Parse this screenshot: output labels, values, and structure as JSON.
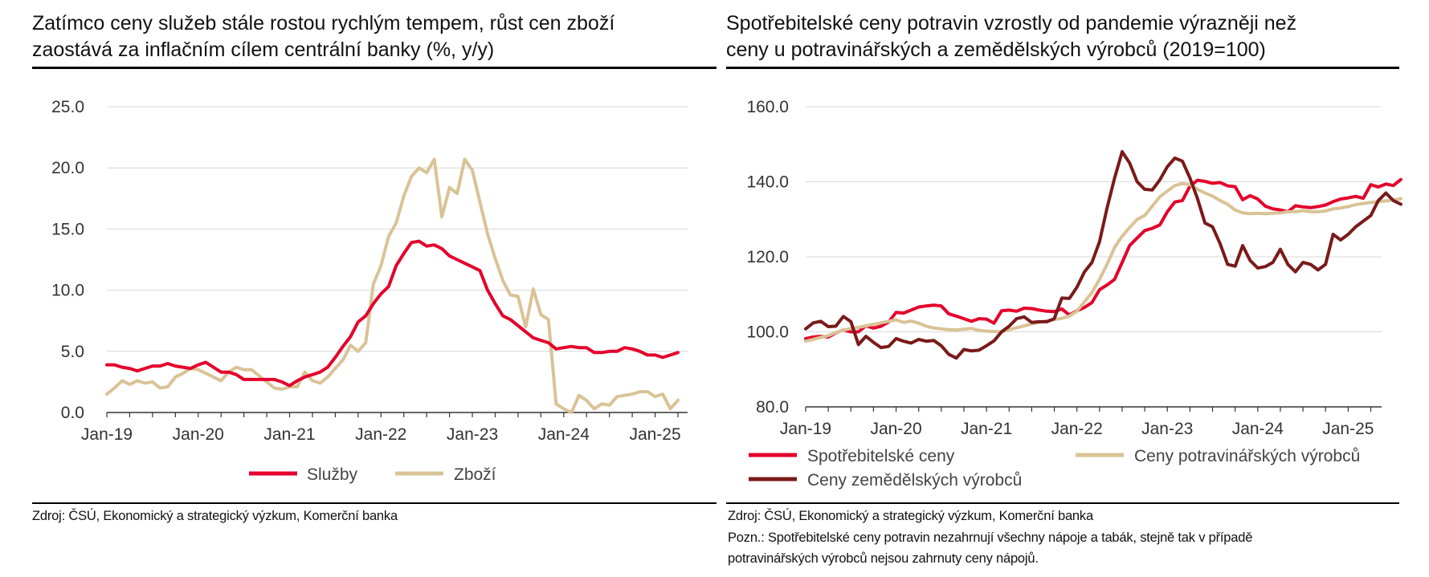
{
  "colors": {
    "red": "#e4002b",
    "beige": "#d9c396",
    "darkred": "#7a1a1a",
    "grid": "#d9d9d9",
    "axis": "#333333"
  },
  "left": {
    "title_line1": "Zatímco ceny služeb stále rostou rychlým tempem, růst cen zboží",
    "title_line2": "zaostává za inflačním cílem centrální banky (%, y/y)",
    "source": "Zdroj: ČSÚ, Ekonomický a strategický výzkum, Komerční banka"
  },
  "right": {
    "title_line1": "Spotřebitelské ceny potravin vzrostly od pandemie výrazněji než",
    "title_line2": "ceny u potravinářských a zemědělských výrobců (2019=100)",
    "source": "Zdroj: ČSÚ, Ekonomický a strategický výzkum, Komerční banka",
    "note_line1": "Pozn.: Spotřebitelské ceny potravin nezahrnují všechny nápoje a tabák, stejně tak v případě",
    "note_line2": "potravinářských výrobců nejsou zahrnuty ceny nápojů."
  },
  "chart_data": [
    {
      "type": "line",
      "title": "Zatímco ceny služeb stále rostou rychlým tempem, růst cen zboží zaostává za inflačním cílem centrální banky (%, y/y)",
      "x_start": "Jan-19",
      "x_ticks": [
        "Jan-19",
        "Jan-20",
        "Jan-21",
        "Jan-22",
        "Jan-23",
        "Jan-24",
        "Jan-25"
      ],
      "ylim": [
        0,
        25
      ],
      "y_ticks": [
        "0.0",
        "5.0",
        "10.0",
        "15.0",
        "20.0",
        "25.0"
      ],
      "grid": true,
      "legend": "bottom",
      "series": [
        {
          "name": "Služby",
          "color": "#e4002b",
          "values": [
            3.9,
            3.9,
            3.7,
            3.6,
            3.4,
            3.6,
            3.8,
            3.8,
            4.0,
            3.8,
            3.7,
            3.6,
            3.9,
            4.1,
            3.7,
            3.3,
            3.3,
            3.1,
            2.7,
            2.7,
            2.7,
            2.7,
            2.7,
            2.5,
            2.2,
            2.6,
            2.9,
            3.1,
            3.3,
            3.7,
            4.5,
            5.4,
            6.2,
            7.4,
            7.9,
            8.9,
            9.7,
            10.3,
            12.0,
            13.0,
            13.9,
            14.0,
            13.6,
            13.7,
            13.4,
            12.8,
            12.5,
            12.2,
            11.9,
            11.6,
            10.0,
            8.9,
            7.9,
            7.6,
            7.1,
            6.6,
            6.1,
            5.9,
            5.7,
            5.2,
            5.3,
            5.4,
            5.3,
            5.3,
            4.9,
            4.9,
            5.0,
            5.0,
            5.3,
            5.2,
            5.0,
            4.7,
            4.7,
            4.5,
            4.7,
            4.9
          ]
        },
        {
          "name": "Zboží",
          "color": "#d9c396",
          "values": [
            1.5,
            2.0,
            2.6,
            2.3,
            2.6,
            2.4,
            2.5,
            2.0,
            2.1,
            2.9,
            3.2,
            3.6,
            3.5,
            3.2,
            2.9,
            2.6,
            3.3,
            3.7,
            3.5,
            3.5,
            3.0,
            2.5,
            2.0,
            1.9,
            2.1,
            2.1,
            3.3,
            2.6,
            2.4,
            2.9,
            3.6,
            4.3,
            5.5,
            5.0,
            5.7,
            10.5,
            12.0,
            14.4,
            15.5,
            17.7,
            19.3,
            20.0,
            19.6,
            20.7,
            16.0,
            18.4,
            17.9,
            20.7,
            19.8,
            17.2,
            14.6,
            12.6,
            10.8,
            9.6,
            9.5,
            7.0,
            10.1,
            8.0,
            7.6,
            0.7,
            0.3,
            0.0,
            1.4,
            1.0,
            0.3,
            0.7,
            0.6,
            1.3,
            1.4,
            1.5,
            1.7,
            1.7,
            1.3,
            1.5,
            0.3,
            1.0
          ]
        }
      ]
    },
    {
      "type": "line",
      "title": "Spotřebitelské ceny potravin vzrostly od pandemie výrazněji než ceny u potravinářských a zemědělských výrobců (2019=100)",
      "x_start": "Jan-19",
      "x_ticks": [
        "Jan-19",
        "Jan-20",
        "Jan-21",
        "Jan-22",
        "Jan-23",
        "Jan-24",
        "Jan-25"
      ],
      "ylim": [
        80,
        160
      ],
      "y_ticks": [
        "80.0",
        "100.0",
        "120.0",
        "140.0",
        "160.0"
      ],
      "grid": true,
      "legend": "bottom",
      "series": [
        {
          "name": "Spotřebitelské ceny",
          "color": "#e4002b",
          "values": [
            98.2,
            98.6,
            98.8,
            98.6,
            99.7,
            100.5,
            100.0,
            100.0,
            101.6,
            101.0,
            101.5,
            102.6,
            105.2,
            105.0,
            105.8,
            106.6,
            106.9,
            107.1,
            106.9,
            104.8,
            104.2,
            103.5,
            102.8,
            103.5,
            103.4,
            102.3,
            105.6,
            105.8,
            105.5,
            106.3,
            106.2,
            105.8,
            105.5,
            105.4,
            106.1,
            104.5,
            105.6,
            106.5,
            107.8,
            111.2,
            112.5,
            114.0,
            118.5,
            123.0,
            125.0,
            127.0,
            127.6,
            128.5,
            132.0,
            134.6,
            135.0,
            138.8,
            140.4,
            140.1,
            139.6,
            139.8,
            138.9,
            138.7,
            135.2,
            136.3,
            135.4,
            133.5,
            132.8,
            132.5,
            132.0,
            133.6,
            133.3,
            133.1,
            133.4,
            133.8,
            134.7,
            135.4,
            135.7,
            136.1,
            135.6,
            139.2,
            138.6,
            139.4,
            139.0,
            140.6
          ]
        },
        {
          "name": "Ceny potravinářských výrobců",
          "color": "#d9c396",
          "values": [
            97.5,
            98.0,
            98.5,
            99.0,
            99.8,
            100.4,
            100.9,
            101.2,
            101.6,
            102.0,
            102.4,
            102.8,
            103.2,
            102.5,
            102.9,
            102.3,
            101.5,
            101.0,
            100.8,
            100.6,
            100.5,
            100.7,
            100.9,
            100.4,
            100.2,
            100.1,
            100.0,
            100.6,
            101.1,
            101.6,
            102.1,
            102.5,
            102.9,
            103.3,
            103.6,
            104.2,
            105.5,
            108.0,
            110.5,
            114.0,
            118.0,
            122.5,
            125.5,
            127.8,
            130.0,
            131.0,
            133.5,
            136.0,
            137.5,
            139.0,
            139.5,
            139.2,
            138.0,
            137.0,
            136.2,
            135.0,
            134.0,
            132.5,
            131.7,
            131.5,
            131.6,
            131.5,
            131.6,
            131.7,
            132.0,
            132.0,
            132.3,
            132.0,
            132.0,
            132.2,
            132.8,
            133.0,
            133.4,
            133.9,
            134.2,
            134.5,
            134.7,
            134.9,
            135.1,
            135.5
          ]
        },
        {
          "name": "Ceny zemědělských výrobců",
          "color": "#7a1a1a",
          "values": [
            100.8,
            102.4,
            102.8,
            101.4,
            101.5,
            104.1,
            102.7,
            96.6,
            98.8,
            97.2,
            95.8,
            96.1,
            98.2,
            97.5,
            97.0,
            98.0,
            97.5,
            97.7,
            96.3,
            94.0,
            93.0,
            95.3,
            94.9,
            95.1,
            96.3,
            97.6,
            100.0,
            101.5,
            103.5,
            104.0,
            102.5,
            102.7,
            102.7,
            103.5,
            109.0,
            108.9,
            111.9,
            116.0,
            118.5,
            124.0,
            133.0,
            141.0,
            148.0,
            145.0,
            140.0,
            138.0,
            137.8,
            140.5,
            144.0,
            146.3,
            145.5,
            141.0,
            135.5,
            129.0,
            128.0,
            123.5,
            118.0,
            117.5,
            123.0,
            119.0,
            117.0,
            117.4,
            118.5,
            122.0,
            118.0,
            116.0,
            118.5,
            118.0,
            116.5,
            118.0,
            126.0,
            124.5,
            126.0,
            128.0,
            129.5,
            131.0,
            135.0,
            137.0,
            135.0,
            134.0
          ]
        }
      ]
    }
  ]
}
